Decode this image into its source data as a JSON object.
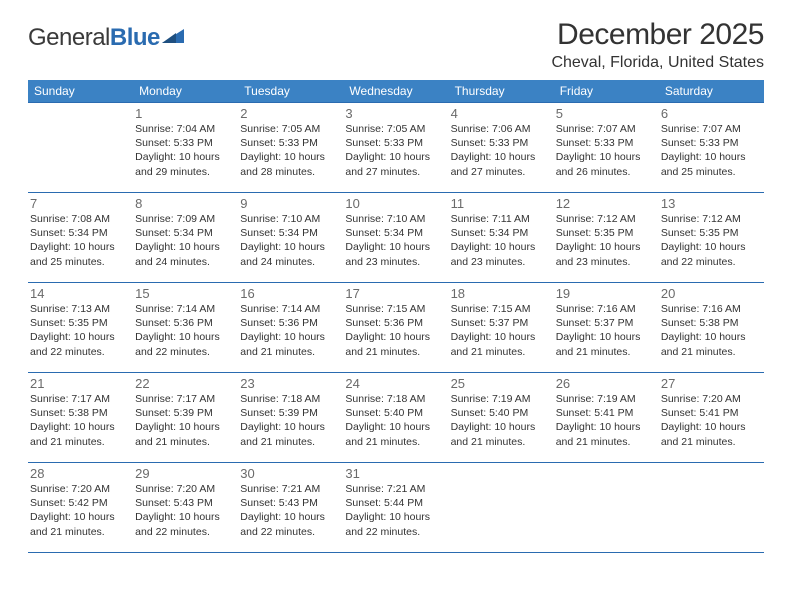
{
  "logo": {
    "text_general": "General",
    "text_blue": "Blue",
    "tri_color": "#2a6bb0"
  },
  "header": {
    "title": "December 2025",
    "location": "Cheval, Florida, United States"
  },
  "colors": {
    "header_bg": "#3b82c4",
    "header_text": "#ffffff",
    "row_border": "#2a6bb0",
    "daynum": "#6a6a6a",
    "body_text": "#333333"
  },
  "day_headers": [
    "Sunday",
    "Monday",
    "Tuesday",
    "Wednesday",
    "Thursday",
    "Friday",
    "Saturday"
  ],
  "weeks": [
    [
      null,
      {
        "n": "1",
        "sunrise": "7:04 AM",
        "sunset": "5:33 PM",
        "daylight": "10 hours and 29 minutes."
      },
      {
        "n": "2",
        "sunrise": "7:05 AM",
        "sunset": "5:33 PM",
        "daylight": "10 hours and 28 minutes."
      },
      {
        "n": "3",
        "sunrise": "7:05 AM",
        "sunset": "5:33 PM",
        "daylight": "10 hours and 27 minutes."
      },
      {
        "n": "4",
        "sunrise": "7:06 AM",
        "sunset": "5:33 PM",
        "daylight": "10 hours and 27 minutes."
      },
      {
        "n": "5",
        "sunrise": "7:07 AM",
        "sunset": "5:33 PM",
        "daylight": "10 hours and 26 minutes."
      },
      {
        "n": "6",
        "sunrise": "7:07 AM",
        "sunset": "5:33 PM",
        "daylight": "10 hours and 25 minutes."
      }
    ],
    [
      {
        "n": "7",
        "sunrise": "7:08 AM",
        "sunset": "5:34 PM",
        "daylight": "10 hours and 25 minutes."
      },
      {
        "n": "8",
        "sunrise": "7:09 AM",
        "sunset": "5:34 PM",
        "daylight": "10 hours and 24 minutes."
      },
      {
        "n": "9",
        "sunrise": "7:10 AM",
        "sunset": "5:34 PM",
        "daylight": "10 hours and 24 minutes."
      },
      {
        "n": "10",
        "sunrise": "7:10 AM",
        "sunset": "5:34 PM",
        "daylight": "10 hours and 23 minutes."
      },
      {
        "n": "11",
        "sunrise": "7:11 AM",
        "sunset": "5:34 PM",
        "daylight": "10 hours and 23 minutes."
      },
      {
        "n": "12",
        "sunrise": "7:12 AM",
        "sunset": "5:35 PM",
        "daylight": "10 hours and 23 minutes."
      },
      {
        "n": "13",
        "sunrise": "7:12 AM",
        "sunset": "5:35 PM",
        "daylight": "10 hours and 22 minutes."
      }
    ],
    [
      {
        "n": "14",
        "sunrise": "7:13 AM",
        "sunset": "5:35 PM",
        "daylight": "10 hours and 22 minutes."
      },
      {
        "n": "15",
        "sunrise": "7:14 AM",
        "sunset": "5:36 PM",
        "daylight": "10 hours and 22 minutes."
      },
      {
        "n": "16",
        "sunrise": "7:14 AM",
        "sunset": "5:36 PM",
        "daylight": "10 hours and 21 minutes."
      },
      {
        "n": "17",
        "sunrise": "7:15 AM",
        "sunset": "5:36 PM",
        "daylight": "10 hours and 21 minutes."
      },
      {
        "n": "18",
        "sunrise": "7:15 AM",
        "sunset": "5:37 PM",
        "daylight": "10 hours and 21 minutes."
      },
      {
        "n": "19",
        "sunrise": "7:16 AM",
        "sunset": "5:37 PM",
        "daylight": "10 hours and 21 minutes."
      },
      {
        "n": "20",
        "sunrise": "7:16 AM",
        "sunset": "5:38 PM",
        "daylight": "10 hours and 21 minutes."
      }
    ],
    [
      {
        "n": "21",
        "sunrise": "7:17 AM",
        "sunset": "5:38 PM",
        "daylight": "10 hours and 21 minutes."
      },
      {
        "n": "22",
        "sunrise": "7:17 AM",
        "sunset": "5:39 PM",
        "daylight": "10 hours and 21 minutes."
      },
      {
        "n": "23",
        "sunrise": "7:18 AM",
        "sunset": "5:39 PM",
        "daylight": "10 hours and 21 minutes."
      },
      {
        "n": "24",
        "sunrise": "7:18 AM",
        "sunset": "5:40 PM",
        "daylight": "10 hours and 21 minutes."
      },
      {
        "n": "25",
        "sunrise": "7:19 AM",
        "sunset": "5:40 PM",
        "daylight": "10 hours and 21 minutes."
      },
      {
        "n": "26",
        "sunrise": "7:19 AM",
        "sunset": "5:41 PM",
        "daylight": "10 hours and 21 minutes."
      },
      {
        "n": "27",
        "sunrise": "7:20 AM",
        "sunset": "5:41 PM",
        "daylight": "10 hours and 21 minutes."
      }
    ],
    [
      {
        "n": "28",
        "sunrise": "7:20 AM",
        "sunset": "5:42 PM",
        "daylight": "10 hours and 21 minutes."
      },
      {
        "n": "29",
        "sunrise": "7:20 AM",
        "sunset": "5:43 PM",
        "daylight": "10 hours and 22 minutes."
      },
      {
        "n": "30",
        "sunrise": "7:21 AM",
        "sunset": "5:43 PM",
        "daylight": "10 hours and 22 minutes."
      },
      {
        "n": "31",
        "sunrise": "7:21 AM",
        "sunset": "5:44 PM",
        "daylight": "10 hours and 22 minutes."
      },
      null,
      null,
      null
    ]
  ],
  "labels": {
    "sunrise": "Sunrise:",
    "sunset": "Sunset:",
    "daylight": "Daylight:"
  }
}
